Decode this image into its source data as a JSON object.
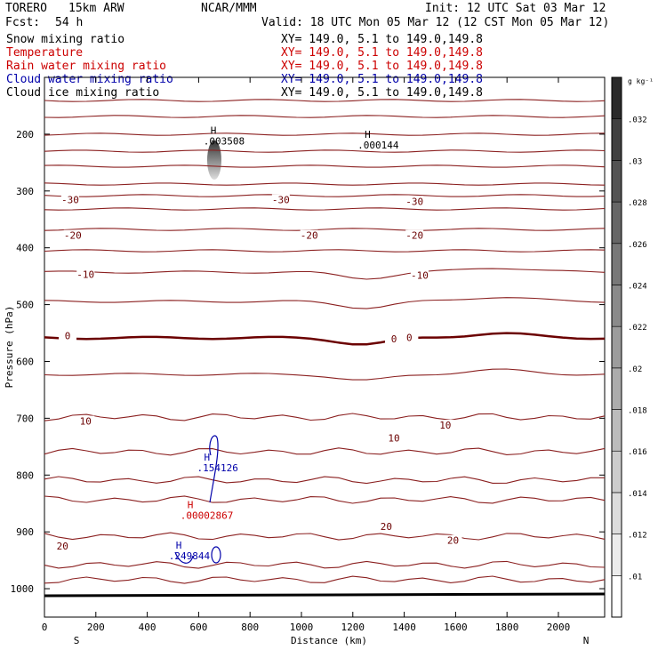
{
  "header": {
    "model": "TORERO",
    "config": "15km ARW",
    "org": "NCAR/MMM",
    "init": "Init: 12 UTC Sat 03 Mar 12",
    "fcst_label": "Fcst:",
    "fcst_value": "54 h",
    "valid": "Valid: 18 UTC Mon 05 Mar 12 (12 CST Mon 05 Mar 12)"
  },
  "fields": [
    {
      "name": "Snow mixing ratio",
      "xy": "XY= 149.0,  5.1 to 149.0,149.8",
      "color": "#000000"
    },
    {
      "name": "Temperature",
      "xy": "XY= 149.0,  5.1 to 149.0,149.8",
      "color": "#cc0000"
    },
    {
      "name": "Rain water mixing ratio",
      "xy": "XY= 149.0,  5.1 to 149.0,149.8",
      "color": "#cc0000"
    },
    {
      "name": "Cloud water mixing ratio",
      "xy": "XY= 149.0,  5.1 to 149.0,149.8",
      "color": "#0000aa"
    },
    {
      "name": "Cloud ice mixing ratio",
      "xy": "XY= 149.0,  5.1 to 149.0,149.8",
      "color": "#000000"
    }
  ],
  "chart_data": {
    "type": "contour",
    "xlabel": "Distance (km)",
    "ylabel": "Pressure (hPa)",
    "xlim": [
      0,
      2180
    ],
    "ylim": [
      1050,
      100
    ],
    "xticks": [
      0,
      200,
      400,
      600,
      800,
      1000,
      1200,
      1400,
      1600,
      1800,
      2000
    ],
    "yticks": [
      200,
      300,
      400,
      500,
      600,
      700,
      800,
      900,
      1000
    ],
    "x_end_labels": {
      "left": "S",
      "right": "N"
    },
    "colorbar": {
      "unit": "g kg⁻¹",
      "ticks": [
        ".01",
        ".012",
        ".014",
        ".016",
        ".018",
        ".02",
        ".022",
        ".024",
        ".026",
        ".028",
        ".03",
        ".032"
      ],
      "colors": [
        "#ffffff",
        "#ececec",
        "#dcdcdc",
        "#cccccc",
        "#bcbcbc",
        "#acacac",
        "#9c9c9c",
        "#8a8a8a",
        "#787878",
        "#666666",
        "#535353",
        "#404040",
        "#2a2a2a"
      ]
    },
    "temperature_labels": [
      {
        "text": "-30",
        "x": 100,
        "p": 315
      },
      {
        "text": "-30",
        "x": 920,
        "p": 315
      },
      {
        "text": "-30",
        "x": 1440,
        "p": 318
      },
      {
        "text": "-20",
        "x": 110,
        "p": 378
      },
      {
        "text": "-20",
        "x": 1030,
        "p": 378
      },
      {
        "text": "-20",
        "x": 1440,
        "p": 378
      },
      {
        "text": "-10",
        "x": 160,
        "p": 447
      },
      {
        "text": "-10",
        "x": 1460,
        "p": 448
      },
      {
        "text": "0",
        "x": 90,
        "p": 555
      },
      {
        "text": "0",
        "x": 1360,
        "p": 560
      },
      {
        "text": "0",
        "x": 1420,
        "p": 558
      },
      {
        "text": "10",
        "x": 160,
        "p": 705
      },
      {
        "text": "10",
        "x": 1360,
        "p": 735
      },
      {
        "text": "10",
        "x": 1560,
        "p": 712
      },
      {
        "text": "20",
        "x": 70,
        "p": 925
      },
      {
        "text": "20",
        "x": 1330,
        "p": 890
      },
      {
        "text": "20",
        "x": 1590,
        "p": 915
      }
    ],
    "max_markers": [
      {
        "mark": "H",
        "value": ".003508",
        "x": 660,
        "p": 218,
        "color": "#000000"
      },
      {
        "mark": "H",
        "value": ".000144",
        "x": 1260,
        "p": 225,
        "color": "#000000"
      },
      {
        "mark": "H",
        "value": ".154126",
        "x": 635,
        "p": 793,
        "color": "#0000aa"
      },
      {
        "mark": "H",
        "value": ".00002867",
        "x": 570,
        "p": 877,
        "color": "#cc0000"
      },
      {
        "mark": "H",
        "value": ".249844",
        "x": 525,
        "p": 948,
        "color": "#0000aa"
      }
    ]
  }
}
